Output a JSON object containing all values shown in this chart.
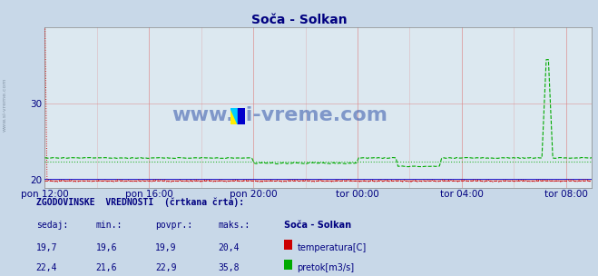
{
  "title": "Soča - Solkan",
  "background_color": "#c8d8e8",
  "plot_bg_color": "#dce8f0",
  "grid_color_h": "#ff9999",
  "grid_color_v": "#ff9999",
  "title_color": "#000080",
  "axis_label_color": "#000080",
  "watermark_text": "www.si-vreme.com",
  "watermark_color": "#3355aa",
  "sidebar_text": "www.si-vreme.com",
  "ylim": [
    19.0,
    40.0
  ],
  "yticks": [
    20,
    30
  ],
  "yticklabels": [
    "20",
    "30"
  ],
  "xtick_labels": [
    "pon 12:00",
    "pon 16:00",
    "pon 20:00",
    "tor 00:00",
    "tor 04:00",
    "tor 08:00"
  ],
  "n_points": 252,
  "temp_color": "#cc0000",
  "flow_color": "#00aa00",
  "blue_line_color": "#0000cc",
  "temp_mean": 19.9,
  "temp_min": 19.6,
  "temp_max": 20.4,
  "temp_current": 19.7,
  "flow_mean": 22.9,
  "flow_min": 21.6,
  "flow_max": 35.8,
  "flow_current": 22.4,
  "info_text": "ZGODOVINSKE  VREDNOSTI  (črtkana črta):",
  "col_sedaj": "sedaj:",
  "col_min": "min.:",
  "col_povpr": "povpr.:",
  "col_maks": "maks.:",
  "station_label": "Soča - Solkan",
  "label_temp": "temperatura[C]",
  "label_flow": "pretok[m3/s]"
}
